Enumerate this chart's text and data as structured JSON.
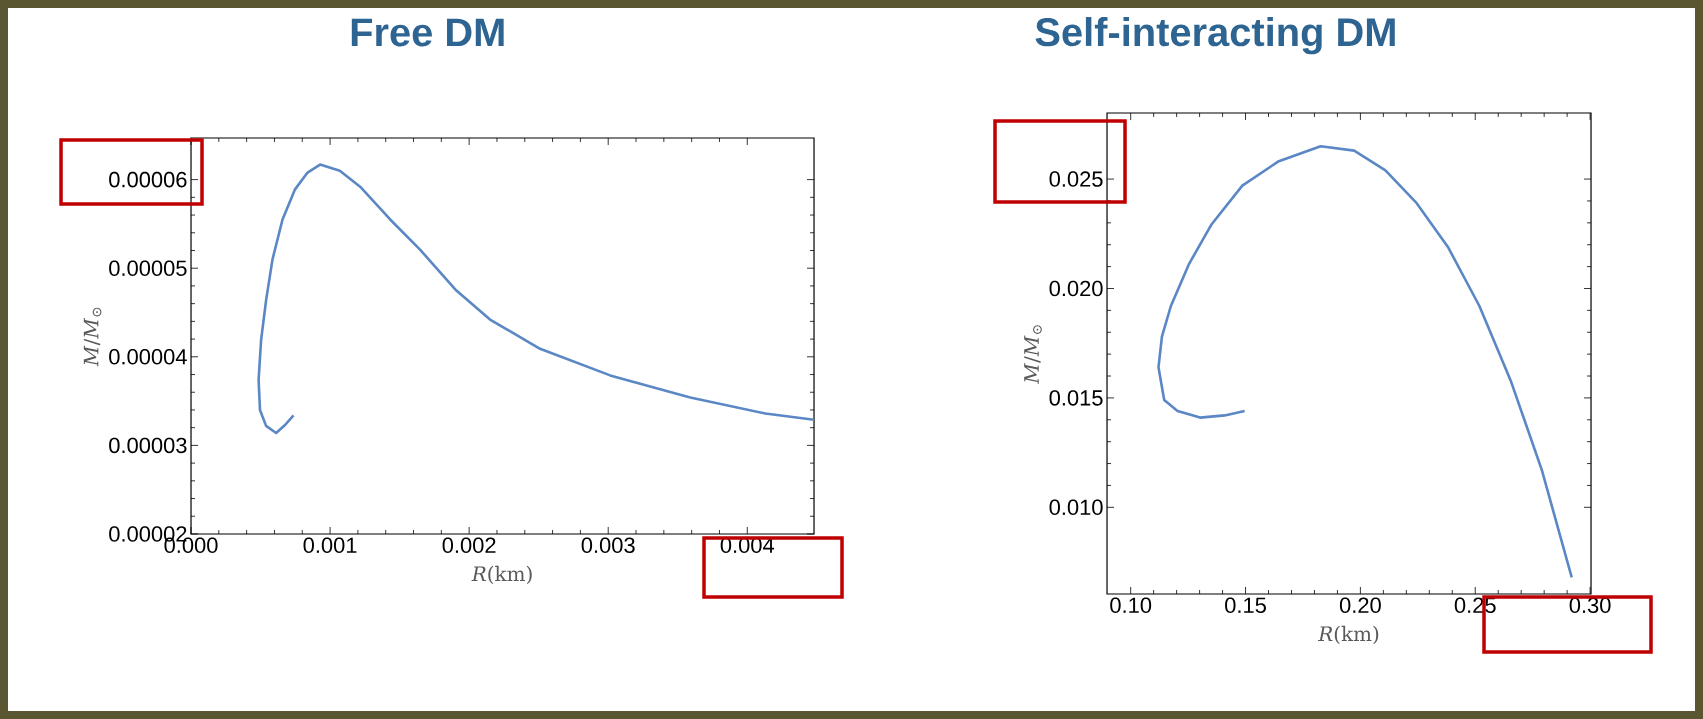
{
  "chart_data": [
    {
      "type": "line",
      "title": "Free DM",
      "xlabel": "*R*(km)",
      "ylabel": "*M*/*M*$_{⊙}$",
      "xlim": [
        0,
        0.00448
      ],
      "ylim": [
        2e-05,
        6.47e-05
      ],
      "xticks": [
        {
          "value": 0,
          "label": "0.000"
        },
        {
          "value": 0.001,
          "label": "0.001"
        },
        {
          "value": 0.002,
          "label": "0.002"
        },
        {
          "value": 0.003,
          "label": "0.003"
        },
        {
          "value": 0.004,
          "label": "0.004"
        }
      ],
      "yticks": [
        {
          "value": 2e-05,
          "label": "0.00002"
        },
        {
          "value": 3e-05,
          "label": "0.00003"
        },
        {
          "value": 4e-05,
          "label": "0.00004"
        },
        {
          "value": 5e-05,
          "label": "0.00005"
        },
        {
          "value": 6e-05,
          "label": "0.00006"
        }
      ],
      "series": [
        {
          "color": "#5b87c5",
          "x": [
            0.000737,
            0.000676,
            0.000612,
            0.00054,
            0.000496,
            0.000486,
            0.000504,
            0.00054,
            0.000586,
            0.000658,
            0.000748,
            0.000838,
            0.000928,
            0.00107,
            0.001216,
            0.001432,
            0.001647,
            0.0019,
            0.00215,
            0.00251,
            0.003014,
            0.00359,
            0.00413,
            0.00448
          ],
          "values": [
            3.34e-05,
            3.23e-05,
            3.14e-05,
            3.22e-05,
            3.4e-05,
            3.74e-05,
            4.19e-05,
            4.64e-05,
            5.1e-05,
            5.55e-05,
            5.89e-05,
            6.08e-05,
            6.17e-05,
            6.1e-05,
            5.92e-05,
            5.55e-05,
            5.21e-05,
            4.76e-05,
            4.42e-05,
            4.09e-05,
            3.79e-05,
            3.54e-05,
            3.36e-05,
            3.29e-05
          ]
        }
      ]
    },
    {
      "type": "line",
      "title": "Self-interacting DM",
      "xlabel": "*R*(km)",
      "ylabel": "*M*/*M*$_{⊙}$",
      "xlim": [
        0.0897,
        0.3004
      ],
      "ylim": [
        0.00604,
        0.02802
      ],
      "xticks": [
        {
          "value": 0.1,
          "label": "0.10"
        },
        {
          "value": 0.15,
          "label": "0.15"
        },
        {
          "value": 0.2,
          "label": "0.20"
        },
        {
          "value": 0.25,
          "label": "0.25"
        },
        {
          "value": 0.3,
          "label": "0.30"
        }
      ],
      "yticks": [
        {
          "value": 0.01,
          "label": "0.010"
        },
        {
          "value": 0.015,
          "label": "0.015"
        },
        {
          "value": 0.02,
          "label": "0.020"
        },
        {
          "value": 0.025,
          "label": "0.025"
        }
      ],
      "series": [
        {
          "color": "#5b87c5",
          "x": [
            0.1496,
            0.1409,
            0.1302,
            0.1204,
            0.1146,
            0.1121,
            0.1136,
            0.1175,
            0.1253,
            0.135,
            0.1486,
            0.1642,
            0.1827,
            0.1973,
            0.2109,
            0.2245,
            0.2381,
            0.2518,
            0.2654,
            0.279,
            0.292
          ],
          "values": [
            0.0144,
            0.0142,
            0.0141,
            0.0144,
            0.0149,
            0.0164,
            0.0178,
            0.0192,
            0.0211,
            0.0229,
            0.0247,
            0.0258,
            0.0265,
            0.0263,
            0.0254,
            0.0239,
            0.0219,
            0.0192,
            0.0158,
            0.0117,
            0.0068
          ]
        }
      ]
    }
  ]
}
